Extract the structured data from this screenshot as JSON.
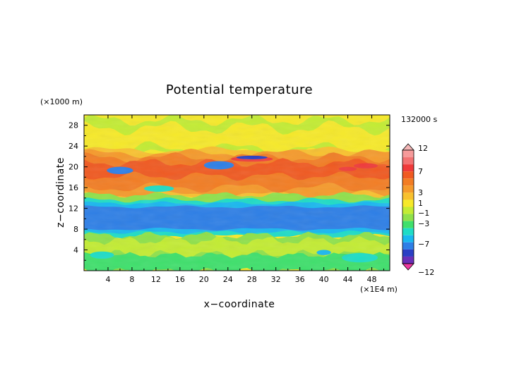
{
  "chart_data": {
    "type": "heatmap",
    "title": "Potential temperature",
    "xlabel": "x−coordinate",
    "ylabel": "z−coordinate",
    "x_unit_label": "(×1E4 m)",
    "y_unit_label": "(×1000 m)",
    "time_label": "132000 s",
    "x_ticks": [
      "4",
      "8",
      "12",
      "16",
      "20",
      "24",
      "28",
      "32",
      "36",
      "40",
      "44",
      "48"
    ],
    "y_ticks": [
      "4",
      "8",
      "12",
      "16",
      "20",
      "24",
      "28"
    ],
    "xlim": [
      0,
      51
    ],
    "ylim": [
      0,
      30
    ],
    "colorbar": {
      "labels": [
        "12",
        "7",
        "3",
        "1",
        "−1",
        "−3",
        "−7",
        "−12"
      ],
      "levels": [
        {
          "range": "above 12",
          "color": "#f4b6b6"
        },
        {
          "range": "11-12",
          "color": "#f69a9a"
        },
        {
          "range": "9-11",
          "color": "#f27272"
        },
        {
          "range": "7-9",
          "color": "#ef3a3a"
        },
        {
          "range": "5-7",
          "color": "#f05a22"
        },
        {
          "range": "3-5",
          "color": "#f27d24"
        },
        {
          "range": "2-3",
          "color": "#f59a2c"
        },
        {
          "range": "1-2",
          "color": "#f8c12f"
        },
        {
          "range": "0-1",
          "color": "#f6e92a"
        },
        {
          "range": "-1-0",
          "color": "#c3ec34"
        },
        {
          "range": "-2--1",
          "color": "#8fe14b"
        },
        {
          "range": "-3--2",
          "color": "#3fe06c"
        },
        {
          "range": "-4--3",
          "color": "#1fdcc6"
        },
        {
          "range": "-5--4",
          "color": "#19b8ef"
        },
        {
          "range": "-7--5",
          "color": "#2e7fe6"
        },
        {
          "range": "-9--7",
          "color": "#2a3fc4"
        },
        {
          "range": "-12--9",
          "color": "#6a2fb8"
        },
        {
          "range": "below -12",
          "color": "#ee3aa0"
        }
      ]
    },
    "bands": [
      {
        "z_range": [
          0,
          2
        ],
        "value": -1.5,
        "note": "green near surface with cyan patches"
      },
      {
        "z_range": [
          2,
          6
        ],
        "value": -2,
        "note": "green/cyan lower layer"
      },
      {
        "z_range": [
          6,
          12.5
        ],
        "value": -5,
        "note": "blue core minimum"
      },
      {
        "z_range": [
          12.5,
          14
        ],
        "value": -3.5,
        "note": "cyan/green transition"
      },
      {
        "z_range": [
          14,
          22
        ],
        "value": 3,
        "note": "orange warm layer with red streaks"
      },
      {
        "z_range": [
          22,
          30
        ],
        "value": 0.5,
        "note": "yellow upper region"
      }
    ]
  }
}
